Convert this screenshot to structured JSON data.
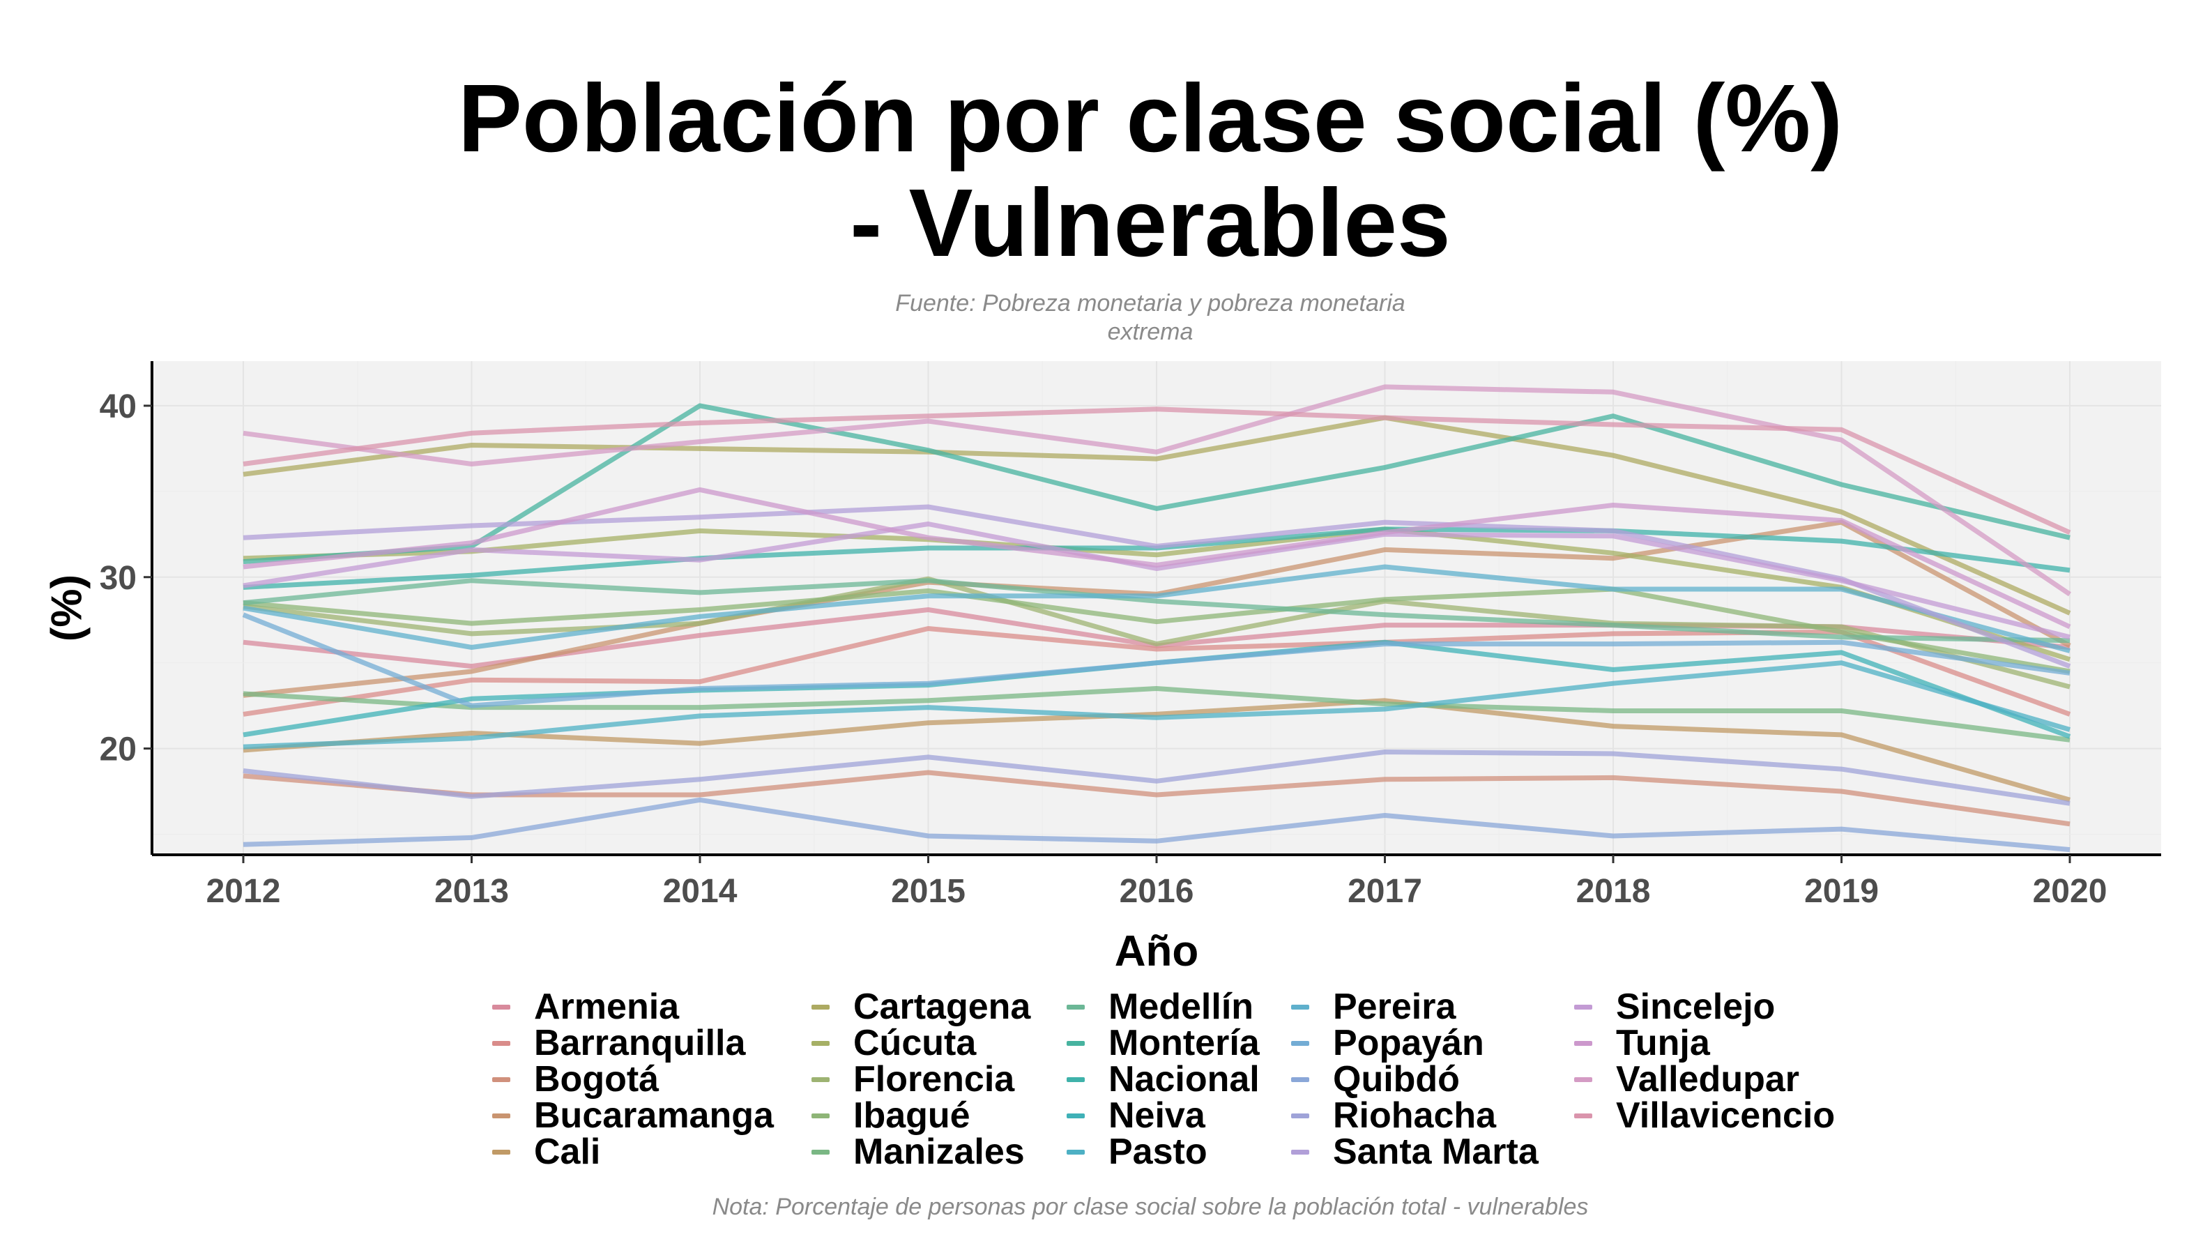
{
  "chart_data": {
    "type": "line",
    "title": "Población por clase social (%)\n- Vulnerables",
    "subtitle": "Fuente: Pobreza monetaria y pobreza monetaria\nextrema",
    "xlabel": "Año",
    "ylabel": "(%)",
    "caption": "Nota: Porcentaje de personas por clase social sobre la población total - vulnerables",
    "x": [
      2012,
      2013,
      2014,
      2015,
      2016,
      2017,
      2018,
      2019,
      2020
    ],
    "xlim": [
      2011.6,
      2020.4
    ],
    "ylim": [
      13.8,
      42.6
    ],
    "yticks": [
      20,
      30,
      40
    ],
    "grid": true,
    "legend_position": "bottom",
    "series": [
      {
        "name": "Armenia",
        "color": "#d88a9c",
        "values": [
          26.2,
          24.8,
          26.6,
          28.1,
          26.0,
          27.2,
          27.2,
          27.1,
          25.9
        ]
      },
      {
        "name": "Barranquilla",
        "color": "#d98c8a",
        "values": [
          22.0,
          24.0,
          23.9,
          27.0,
          25.8,
          26.2,
          26.7,
          26.8,
          22.0
        ]
      },
      {
        "name": "Bogotá",
        "color": "#d0907c",
        "values": [
          18.4,
          17.3,
          17.3,
          18.6,
          17.3,
          18.2,
          18.3,
          17.5,
          15.6
        ]
      },
      {
        "name": "Bucaramanga",
        "color": "#c99470",
        "values": [
          23.1,
          24.5,
          27.3,
          29.7,
          29.0,
          31.6,
          31.1,
          33.2,
          26.0
        ]
      },
      {
        "name": "Cali",
        "color": "#c09a66",
        "values": [
          19.9,
          20.9,
          20.3,
          21.5,
          22.0,
          22.8,
          21.3,
          20.8,
          17.0
        ]
      },
      {
        "name": "Cartagena",
        "color": "#adaa62",
        "values": [
          36.0,
          37.7,
          37.5,
          37.3,
          36.9,
          39.3,
          37.1,
          33.8,
          27.9
        ]
      },
      {
        "name": "Cúcuta",
        "color": "#a6b066",
        "values": [
          31.1,
          31.5,
          32.7,
          32.2,
          31.3,
          32.8,
          31.4,
          29.4,
          25.2
        ]
      },
      {
        "name": "Florencia",
        "color": "#9db372",
        "values": [
          28.3,
          26.7,
          27.3,
          29.9,
          26.1,
          28.6,
          27.3,
          27.1,
          23.6
        ]
      },
      {
        "name": "Ibagué",
        "color": "#8eb577",
        "values": [
          28.5,
          27.3,
          28.1,
          29.2,
          27.4,
          28.7,
          29.3,
          26.8,
          24.5
        ]
      },
      {
        "name": "Manizales",
        "color": "#7ab784",
        "values": [
          23.2,
          22.4,
          22.4,
          22.8,
          23.5,
          22.6,
          22.2,
          22.2,
          20.5
        ]
      },
      {
        "name": "Medellín",
        "color": "#6cb796",
        "values": [
          28.5,
          29.8,
          29.1,
          29.8,
          28.6,
          27.8,
          27.2,
          26.5,
          26.3
        ]
      },
      {
        "name": "Montería",
        "color": "#47b39f",
        "values": [
          30.9,
          31.8,
          40.0,
          37.4,
          34.0,
          36.4,
          39.4,
          35.4,
          32.3
        ]
      },
      {
        "name": "Nacional",
        "color": "#3fb2aa",
        "values": [
          29.4,
          30.1,
          31.1,
          31.7,
          31.7,
          32.8,
          32.7,
          32.1,
          30.4
        ]
      },
      {
        "name": "Neiva",
        "color": "#3fb1b7",
        "values": [
          20.8,
          22.9,
          23.4,
          23.7,
          25.0,
          26.2,
          24.6,
          25.6,
          20.7
        ]
      },
      {
        "name": "Pasto",
        "color": "#4db0c4",
        "values": [
          20.1,
          20.6,
          21.9,
          22.4,
          21.8,
          22.3,
          23.8,
          25.0,
          21.1
        ]
      },
      {
        "name": "Pereira",
        "color": "#5fb0cc",
        "values": [
          28.2,
          25.9,
          27.7,
          28.9,
          28.9,
          30.6,
          29.3,
          29.3,
          25.7
        ]
      },
      {
        "name": "Popayán",
        "color": "#73acd4",
        "values": [
          27.8,
          22.5,
          23.5,
          23.8,
          25.0,
          26.1,
          26.1,
          26.2,
          24.4
        ]
      },
      {
        "name": "Quibdó",
        "color": "#8aa7d8",
        "values": [
          14.4,
          14.8,
          17.0,
          14.9,
          14.6,
          16.1,
          14.9,
          15.3,
          14.1
        ]
      },
      {
        "name": "Riohacha",
        "color": "#9fa3d8",
        "values": [
          18.7,
          17.2,
          18.2,
          19.5,
          18.1,
          19.8,
          19.7,
          18.8,
          16.8
        ]
      },
      {
        "name": "Santa Marta",
        "color": "#b19fd8",
        "values": [
          32.3,
          33.0,
          33.5,
          34.1,
          31.8,
          33.2,
          32.7,
          29.9,
          24.8
        ]
      },
      {
        "name": "Sincelejo",
        "color": "#c39bd4",
        "values": [
          29.5,
          31.6,
          31.0,
          33.1,
          30.5,
          32.5,
          32.4,
          29.8,
          26.5
        ]
      },
      {
        "name": "Tunja",
        "color": "#cc98cc",
        "values": [
          30.6,
          32.0,
          35.1,
          32.3,
          30.7,
          32.6,
          34.2,
          33.3,
          27.1
        ]
      },
      {
        "name": "Valledupar",
        "color": "#d49bc4",
        "values": [
          38.4,
          36.6,
          37.9,
          39.1,
          37.3,
          41.1,
          40.8,
          38.0,
          29.0
        ]
      },
      {
        "name": "Villavicencio",
        "color": "#da94ac",
        "values": [
          36.6,
          38.4,
          39.0,
          39.4,
          39.8,
          39.3,
          38.9,
          38.6,
          32.6
        ]
      }
    ]
  }
}
